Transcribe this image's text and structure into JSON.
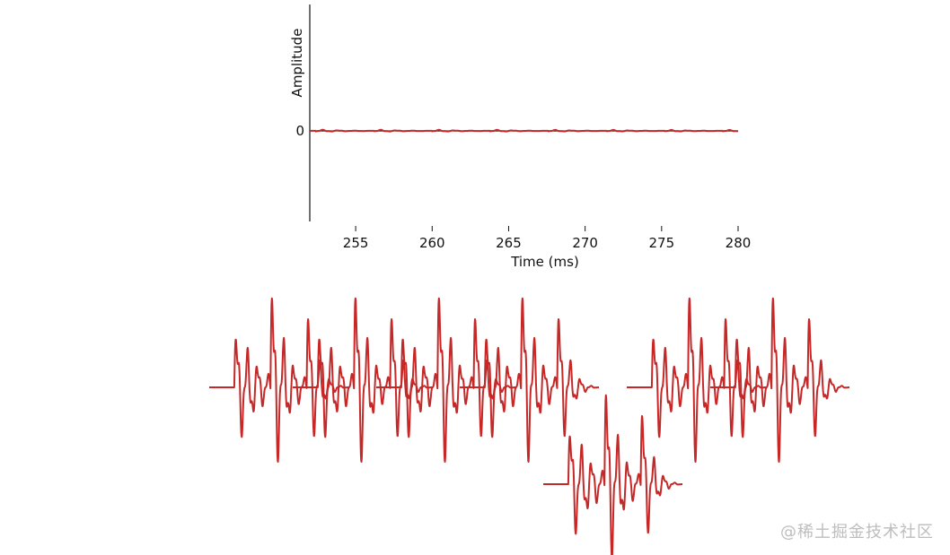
{
  "chart_data": [
    {
      "type": "line",
      "xlabel": "Time (ms)",
      "ylabel": "Amplitude",
      "xlim": [
        252,
        280
      ],
      "ylim": [
        -1.0,
        1.25
      ],
      "xticks": [
        255,
        260,
        265,
        270,
        275,
        280
      ],
      "yticks": [
        0
      ],
      "grid": false,
      "zero_line": true,
      "series_color": "#c62828",
      "pulse_period_ms": 3.8
    },
    {
      "type": "line",
      "xlabel": "",
      "ylabel": "",
      "axes_visible": false,
      "description_units": "overlapping grains",
      "grains": [
        {
          "start_x": 0.0,
          "level": 0.0
        },
        {
          "start_x": 0.3,
          "level": 0.0
        },
        {
          "start_x": 0.6,
          "level": 0.0
        },
        {
          "start_x": 0.9,
          "level": 0.0
        },
        {
          "start_x": 1.2,
          "level": -1.0
        },
        {
          "start_x": 1.5,
          "level": 0.0
        },
        {
          "start_x": 1.8,
          "level": 0.0
        }
      ],
      "series_color": "#c62828"
    }
  ],
  "watermark": "@稀土掘金技术社区"
}
